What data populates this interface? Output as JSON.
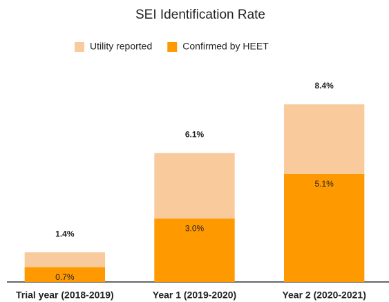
{
  "chart_data": {
    "type": "stacked_bar",
    "title": "SEI Identification Rate",
    "categories": [
      "Trial year (2018-2019)",
      "Year 1 (2019-2020)",
      "Year 2 (2020-2021)"
    ],
    "series": [
      {
        "name": "Confirmed by HEET",
        "color": "#ff9900",
        "values": [
          0.7,
          3.0,
          5.1
        ],
        "value_labels": [
          "0.7%",
          "3.0%",
          "5.1%"
        ]
      },
      {
        "name": "Utility reported",
        "color": "#f9cb9c",
        "values": [
          0.7,
          3.1,
          3.3
        ]
      }
    ],
    "totals": [
      1.4,
      6.1,
      8.4
    ],
    "total_labels": [
      "1.4%",
      "6.1%",
      "8.4%"
    ],
    "ylim": [
      0,
      9
    ],
    "legend": "top"
  }
}
